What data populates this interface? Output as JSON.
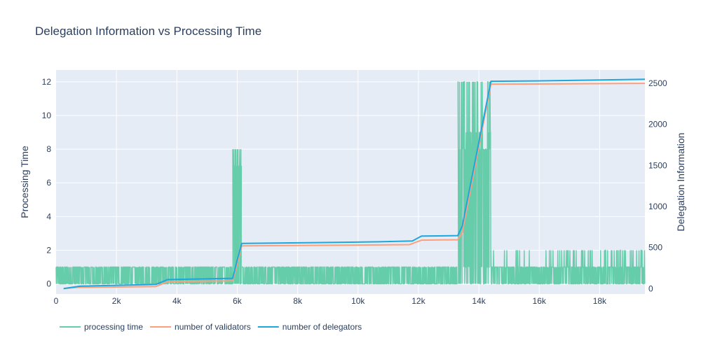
{
  "chart_data": {
    "type": "line",
    "title": "Delegation Information vs Processing Time",
    "xlabel": "",
    "ylabel_left": "Processing Time",
    "ylabel_right": "Delegation Information",
    "xlim": [
      0,
      19500
    ],
    "ylim_left": [
      -0.6,
      12.7
    ],
    "ylim_right": [
      -66,
      2663
    ],
    "x_ticks": [
      0,
      2000,
      4000,
      6000,
      8000,
      10000,
      12000,
      14000,
      16000,
      18000
    ],
    "x_tick_labels": [
      "0",
      "2k",
      "4k",
      "6k",
      "8k",
      "10k",
      "12k",
      "14k",
      "16k",
      "18k"
    ],
    "y_left_ticks": [
      0,
      2,
      4,
      6,
      8,
      10,
      12
    ],
    "y_left_tick_labels": [
      "0",
      "2",
      "4",
      "6",
      "8",
      "10",
      "12"
    ],
    "y_right_ticks": [
      0,
      500,
      1000,
      1500,
      2000,
      2500
    ],
    "y_right_tick_labels": [
      "0",
      "500",
      "1000",
      "1500",
      "2000",
      "2500"
    ],
    "grid": true,
    "legend_position": "bottom-left",
    "series": [
      {
        "name": "processing time",
        "axis": "left",
        "color": "#66cdaa",
        "style": "noisy",
        "regions": [
          {
            "x": [
              0,
              5850
            ],
            "spikes": [
              0,
              1
            ]
          },
          {
            "x": [
              5850,
              6150
            ],
            "spikes": [
              0,
              1,
              7,
              8
            ]
          },
          {
            "x": [
              6150,
              13300
            ],
            "spikes": [
              0,
              1
            ]
          },
          {
            "x": [
              13300,
              14400
            ],
            "spikes": [
              0,
              1,
              8,
              9,
              12
            ]
          },
          {
            "x": [
              14400,
              19500
            ],
            "spikes": [
              0,
              1,
              2
            ]
          }
        ]
      },
      {
        "name": "number of validators",
        "axis": "right",
        "color": "#fc9f7d",
        "points": [
          [
            250,
            0
          ],
          [
            700,
            15
          ],
          [
            3300,
            25
          ],
          [
            3700,
            85
          ],
          [
            5850,
            95
          ],
          [
            6000,
            300
          ],
          [
            6150,
            520
          ],
          [
            11700,
            535
          ],
          [
            12100,
            590
          ],
          [
            13300,
            595
          ],
          [
            13450,
            680
          ],
          [
            14400,
            2490
          ],
          [
            19500,
            2500
          ]
        ]
      },
      {
        "name": "number of delegators",
        "axis": "right",
        "color": "#1ba7e0",
        "points": [
          [
            250,
            0
          ],
          [
            800,
            30
          ],
          [
            3300,
            50
          ],
          [
            3700,
            110
          ],
          [
            5850,
            125
          ],
          [
            6000,
            350
          ],
          [
            6150,
            550
          ],
          [
            8600,
            560
          ],
          [
            10700,
            570
          ],
          [
            11800,
            580
          ],
          [
            12100,
            640
          ],
          [
            13300,
            645
          ],
          [
            13450,
            760
          ],
          [
            14400,
            2525
          ],
          [
            15900,
            2530
          ],
          [
            19500,
            2550
          ]
        ]
      }
    ]
  }
}
